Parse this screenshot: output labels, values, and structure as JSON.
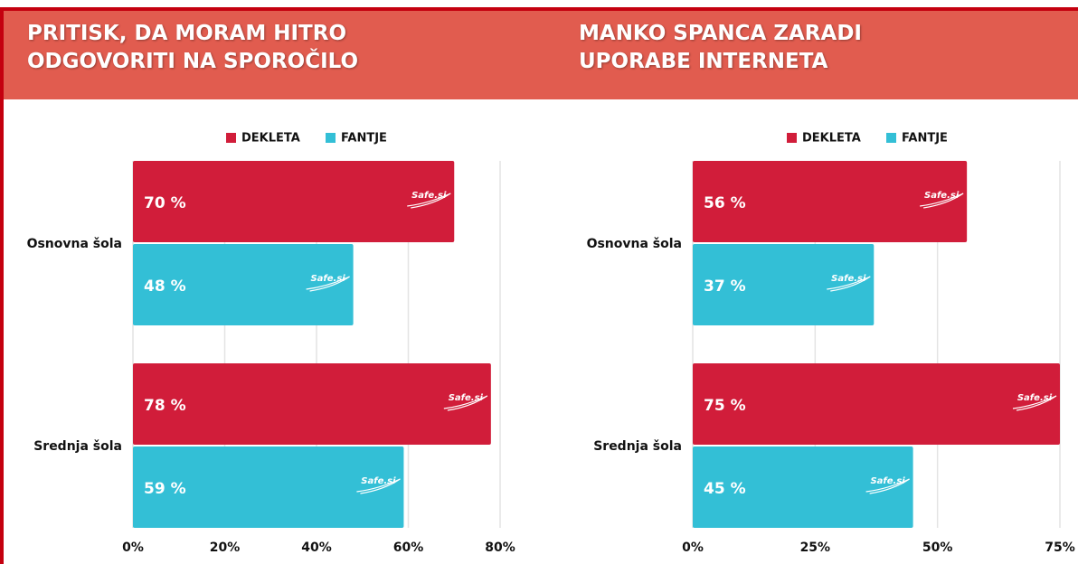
{
  "chart_data": [
    {
      "type": "bar",
      "title": "PRITISK, DA MORAM HITRO ODGOVORITI NA SPOROČILO",
      "categories": [
        "Osnovna šola",
        "Srednja šola"
      ],
      "series": [
        {
          "name": "DEKLETA",
          "color": "#d11d3a",
          "values": [
            70,
            78
          ],
          "value_labels": [
            "70 %",
            "78 %"
          ]
        },
        {
          "name": "FANTJE",
          "color": "#33bfd6",
          "values": [
            48,
            59
          ],
          "value_labels": [
            "48 %",
            "59 %"
          ]
        }
      ],
      "xlim": [
        0,
        80
      ],
      "xticks": [
        {
          "value": 0,
          "label": "0%"
        },
        {
          "value": 20,
          "label": "20%"
        },
        {
          "value": 40,
          "label": "40%"
        },
        {
          "value": 60,
          "label": "60%"
        },
        {
          "value": 80,
          "label": "80%"
        }
      ],
      "grid": true,
      "legend": "top",
      "watermark": "Safe.si"
    },
    {
      "type": "bar",
      "title": "MANKO SPANCA ZARADI UPORABE INTERNETA",
      "categories": [
        "Osnovna šola",
        "Srednja šola"
      ],
      "series": [
        {
          "name": "DEKLETA",
          "color": "#d11d3a",
          "values": [
            56,
            75
          ],
          "value_labels": [
            "56 %",
            "75 %"
          ]
        },
        {
          "name": "FANTJE",
          "color": "#33bfd6",
          "values": [
            37,
            45
          ],
          "value_labels": [
            "37 %",
            "45 %"
          ]
        }
      ],
      "xlim": [
        0,
        75
      ],
      "xticks": [
        {
          "value": 0,
          "label": "0%"
        },
        {
          "value": 25,
          "label": "25%"
        },
        {
          "value": 50,
          "label": "50%"
        },
        {
          "value": 75,
          "label": "75%"
        }
      ],
      "grid": true,
      "legend": "top",
      "watermark": "Safe.si"
    }
  ]
}
